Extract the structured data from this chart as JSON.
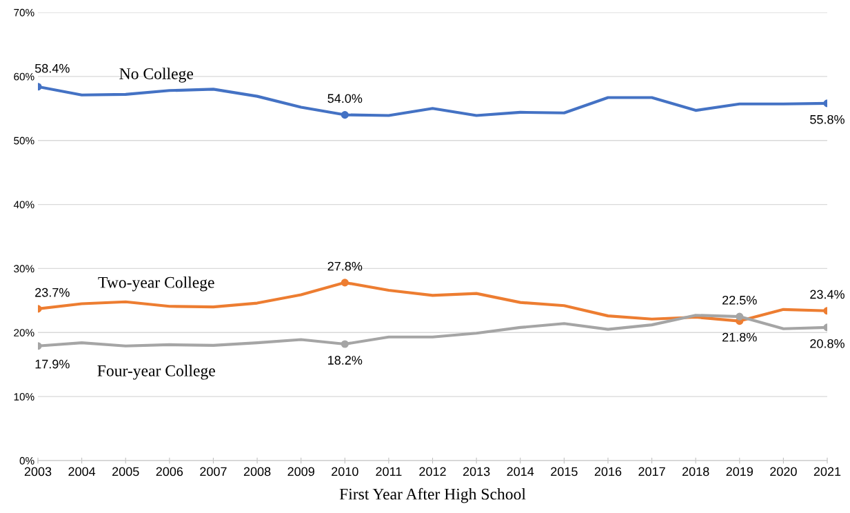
{
  "chart_data": {
    "type": "line",
    "xlabel": "First Year After High School",
    "x": [
      2003,
      2004,
      2005,
      2006,
      2007,
      2008,
      2009,
      2010,
      2011,
      2012,
      2013,
      2014,
      2015,
      2016,
      2017,
      2018,
      2019,
      2020,
      2021
    ],
    "series": [
      {
        "name": "No College",
        "color": "#4472c4",
        "values": [
          58.4,
          57.1,
          57.2,
          57.8,
          58.0,
          56.9,
          55.2,
          54.0,
          53.9,
          55.0,
          53.9,
          54.4,
          54.3,
          56.7,
          56.7,
          54.7,
          55.7,
          55.7,
          55.8
        ]
      },
      {
        "name": "Two-year College",
        "color": "#ed7d31",
        "values": [
          23.7,
          24.5,
          24.8,
          24.1,
          24.0,
          24.6,
          25.9,
          27.8,
          26.6,
          25.8,
          26.1,
          24.7,
          24.2,
          22.6,
          22.1,
          22.4,
          21.8,
          23.6,
          23.4
        ]
      },
      {
        "name": "Four-year College",
        "color": "#a5a5a5",
        "values": [
          17.9,
          18.4,
          17.9,
          18.1,
          18.0,
          18.4,
          18.9,
          18.2,
          19.3,
          19.3,
          19.9,
          20.8,
          21.4,
          20.5,
          21.2,
          22.7,
          22.5,
          20.6,
          20.8
        ]
      }
    ],
    "annotations": [
      {
        "text": "58.4%",
        "x": 2003,
        "y": 58.4
      },
      {
        "text": "54.0%",
        "x": 2010,
        "y": 54.0
      },
      {
        "text": "55.8%",
        "x": 2021,
        "y": 55.8
      },
      {
        "text": "23.7%",
        "x": 2003,
        "y": 23.7
      },
      {
        "text": "27.8%",
        "x": 2010,
        "y": 27.8
      },
      {
        "text": "21.8%",
        "x": 2019,
        "y": 21.8
      },
      {
        "text": "23.4%",
        "x": 2021,
        "y": 23.4
      },
      {
        "text": "17.9%",
        "x": 2003,
        "y": 17.9
      },
      {
        "text": "18.2%",
        "x": 2010,
        "y": 18.2
      },
      {
        "text": "22.5%",
        "x": 2019,
        "y": 22.5
      },
      {
        "text": "20.8%",
        "x": 2021,
        "y": 20.8
      }
    ],
    "xlim": [
      2003,
      2021
    ],
    "xticks": [
      2003,
      2004,
      2005,
      2006,
      2007,
      2008,
      2009,
      2010,
      2011,
      2012,
      2013,
      2014,
      2015,
      2016,
      2017,
      2018,
      2019,
      2020,
      2021
    ],
    "ylim": [
      0,
      70
    ],
    "yticks": [
      {
        "value": 0,
        "label": "0%"
      },
      {
        "value": 10,
        "label": "10%"
      },
      {
        "value": 20,
        "label": "20%"
      },
      {
        "value": 30,
        "label": "30%"
      },
      {
        "value": 40,
        "label": "40%"
      },
      {
        "value": 50,
        "label": "50%"
      },
      {
        "value": 60,
        "label": "60%"
      },
      {
        "value": 70,
        "label": "70%"
      }
    ],
    "grid": "y",
    "legend": false,
    "line_style": "solid",
    "marker": "none"
  }
}
